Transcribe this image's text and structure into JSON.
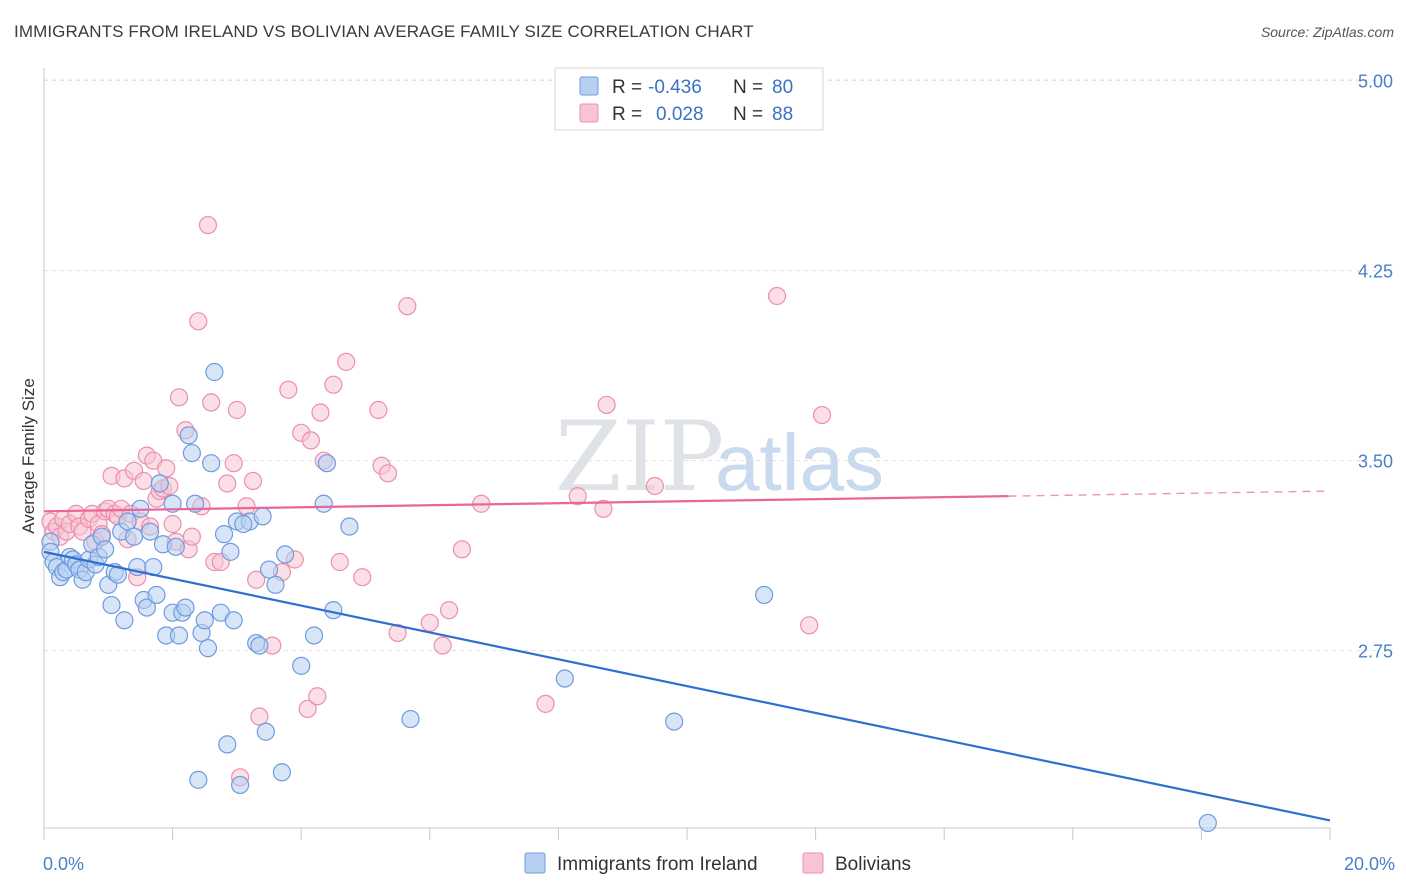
{
  "title": "IMMIGRANTS FROM IRELAND VS BOLIVIAN AVERAGE FAMILY SIZE CORRELATION CHART",
  "source": "Source: ZipAtlas.com",
  "watermark": {
    "zip": "ZIP",
    "atlas": "atlas"
  },
  "legend_box": [
    {
      "r_label": "R =",
      "r_value": "-0.436",
      "n_label": "N =",
      "n_value": "80"
    },
    {
      "r_label": "R =",
      "r_value": "0.028",
      "n_label": "N =",
      "n_value": "88"
    }
  ],
  "colors": {
    "ireland_fill": "#b7cff1",
    "ireland_stroke": "#6f9be0",
    "ireland_line": "#2e6fd0",
    "bolivia_fill": "#f8c4d3",
    "bolivia_stroke": "#ec8fab",
    "bolivia_line": "#e8669a"
  },
  "chart_data": {
    "type": "scatter",
    "xlabel": "",
    "ylabel": "Average Family Size",
    "xlim": [
      0,
      20
    ],
    "ylim": [
      2.05,
      5.05
    ],
    "x_tick_labels": [
      "0.0%",
      "20.0%"
    ],
    "y_ticks": [
      2.75,
      3.5,
      4.25,
      5.0
    ],
    "y_tick_labels": [
      "2.75",
      "3.50",
      "4.25",
      "5.00"
    ],
    "grid": "horizontal dashed",
    "legend_position": "top-center",
    "series": [
      {
        "name": "Immigrants from Ireland",
        "trend": {
          "x": [
            0,
            20
          ],
          "y": [
            3.14,
            2.08
          ]
        },
        "points": [
          [
            0.1,
            3.18
          ],
          [
            0.1,
            3.14
          ],
          [
            0.15,
            3.1
          ],
          [
            0.2,
            3.08
          ],
          [
            0.25,
            3.04
          ],
          [
            0.3,
            3.06
          ],
          [
            0.35,
            3.07
          ],
          [
            0.4,
            3.12
          ],
          [
            0.45,
            3.11
          ],
          [
            0.5,
            3.09
          ],
          [
            0.55,
            3.07
          ],
          [
            0.6,
            3.03
          ],
          [
            0.65,
            3.06
          ],
          [
            0.7,
            3.11
          ],
          [
            0.75,
            3.17
          ],
          [
            0.8,
            3.09
          ],
          [
            0.85,
            3.12
          ],
          [
            0.9,
            3.2
          ],
          [
            0.95,
            3.15
          ],
          [
            1.0,
            3.01
          ],
          [
            1.05,
            2.93
          ],
          [
            1.1,
            3.06
          ],
          [
            1.15,
            3.05
          ],
          [
            1.2,
            3.22
          ],
          [
            1.25,
            2.87
          ],
          [
            1.3,
            3.26
          ],
          [
            1.4,
            3.2
          ],
          [
            1.45,
            3.08
          ],
          [
            1.5,
            3.31
          ],
          [
            1.55,
            2.95
          ],
          [
            1.6,
            2.92
          ],
          [
            1.65,
            3.22
          ],
          [
            1.7,
            3.08
          ],
          [
            1.75,
            2.97
          ],
          [
            1.8,
            3.41
          ],
          [
            1.85,
            3.17
          ],
          [
            1.9,
            2.81
          ],
          [
            2.0,
            2.9
          ],
          [
            2.05,
            3.16
          ],
          [
            2.1,
            2.81
          ],
          [
            2.15,
            2.9
          ],
          [
            2.2,
            2.92
          ],
          [
            2.25,
            3.6
          ],
          [
            2.3,
            3.53
          ],
          [
            2.35,
            3.33
          ],
          [
            2.4,
            2.24
          ],
          [
            2.45,
            2.82
          ],
          [
            2.5,
            2.87
          ],
          [
            2.55,
            2.76
          ],
          [
            2.6,
            3.49
          ],
          [
            2.65,
            3.85
          ],
          [
            2.75,
            2.9
          ],
          [
            2.8,
            3.21
          ],
          [
            2.85,
            2.38
          ],
          [
            2.9,
            3.14
          ],
          [
            2.95,
            2.87
          ],
          [
            3.0,
            3.26
          ],
          [
            3.05,
            2.22
          ],
          [
            3.2,
            3.26
          ],
          [
            3.3,
            2.78
          ],
          [
            3.35,
            2.77
          ],
          [
            3.4,
            3.28
          ],
          [
            3.45,
            2.43
          ],
          [
            3.5,
            3.07
          ],
          [
            3.6,
            3.01
          ],
          [
            3.7,
            2.27
          ],
          [
            3.75,
            3.13
          ],
          [
            4.0,
            2.69
          ],
          [
            4.2,
            2.81
          ],
          [
            4.35,
            3.33
          ],
          [
            4.4,
            3.49
          ],
          [
            4.5,
            2.91
          ],
          [
            4.75,
            3.24
          ],
          [
            5.7,
            2.48
          ],
          [
            8.1,
            2.64
          ],
          [
            9.8,
            2.47
          ],
          [
            11.2,
            2.97
          ],
          [
            18.1,
            2.07
          ],
          [
            2.0,
            3.33
          ],
          [
            3.1,
            3.25
          ]
        ]
      },
      {
        "name": "Bolivians",
        "trend": {
          "x": [
            0,
            15
          ],
          "y": [
            3.3,
            3.36
          ]
        },
        "trend_dashed": {
          "x": [
            15,
            20
          ],
          "y": [
            3.36,
            3.38
          ]
        },
        "points": [
          [
            0.1,
            3.26
          ],
          [
            0.15,
            3.22
          ],
          [
            0.2,
            3.24
          ],
          [
            0.25,
            3.2
          ],
          [
            0.3,
            3.27
          ],
          [
            0.35,
            3.22
          ],
          [
            0.4,
            3.25
          ],
          [
            0.5,
            3.29
          ],
          [
            0.55,
            3.24
          ],
          [
            0.6,
            3.22
          ],
          [
            0.7,
            3.27
          ],
          [
            0.75,
            3.29
          ],
          [
            0.8,
            3.18
          ],
          [
            0.85,
            3.25
          ],
          [
            0.9,
            3.21
          ],
          [
            0.95,
            3.3
          ],
          [
            1.0,
            3.31
          ],
          [
            1.05,
            3.44
          ],
          [
            1.1,
            3.29
          ],
          [
            1.15,
            3.28
          ],
          [
            1.2,
            3.31
          ],
          [
            1.25,
            3.43
          ],
          [
            1.3,
            3.19
          ],
          [
            1.35,
            3.29
          ],
          [
            1.4,
            3.46
          ],
          [
            1.45,
            3.04
          ],
          [
            1.5,
            3.26
          ],
          [
            1.55,
            3.42
          ],
          [
            1.6,
            3.52
          ],
          [
            1.65,
            3.24
          ],
          [
            1.7,
            3.5
          ],
          [
            1.75,
            3.35
          ],
          [
            1.8,
            3.38
          ],
          [
            1.85,
            3.39
          ],
          [
            1.9,
            3.47
          ],
          [
            1.95,
            3.4
          ],
          [
            2.0,
            3.25
          ],
          [
            2.05,
            3.18
          ],
          [
            2.1,
            3.75
          ],
          [
            2.2,
            3.62
          ],
          [
            2.25,
            3.15
          ],
          [
            2.3,
            3.2
          ],
          [
            2.4,
            4.05
          ],
          [
            2.45,
            3.32
          ],
          [
            2.55,
            4.43
          ],
          [
            2.6,
            3.73
          ],
          [
            2.65,
            3.1
          ],
          [
            2.75,
            3.1
          ],
          [
            2.85,
            3.41
          ],
          [
            2.95,
            3.49
          ],
          [
            3.0,
            3.7
          ],
          [
            3.05,
            2.25
          ],
          [
            3.15,
            3.32
          ],
          [
            3.25,
            3.42
          ],
          [
            3.3,
            3.03
          ],
          [
            3.35,
            2.49
          ],
          [
            3.55,
            2.77
          ],
          [
            3.7,
            3.06
          ],
          [
            3.8,
            3.78
          ],
          [
            3.9,
            3.11
          ],
          [
            4.0,
            3.61
          ],
          [
            4.1,
            2.52
          ],
          [
            4.15,
            3.58
          ],
          [
            4.25,
            2.57
          ],
          [
            4.3,
            3.69
          ],
          [
            4.35,
            3.5
          ],
          [
            4.5,
            3.8
          ],
          [
            4.6,
            3.1
          ],
          [
            4.7,
            3.89
          ],
          [
            4.95,
            3.04
          ],
          [
            5.2,
            3.7
          ],
          [
            5.25,
            3.48
          ],
          [
            5.35,
            3.45
          ],
          [
            5.5,
            2.82
          ],
          [
            5.65,
            4.11
          ],
          [
            6.0,
            2.86
          ],
          [
            6.2,
            2.77
          ],
          [
            6.3,
            2.91
          ],
          [
            6.5,
            3.15
          ],
          [
            6.8,
            3.33
          ],
          [
            7.8,
            2.54
          ],
          [
            8.3,
            3.36
          ],
          [
            8.7,
            3.31
          ],
          [
            8.75,
            3.72
          ],
          [
            9.5,
            3.4
          ],
          [
            11.4,
            4.15
          ],
          [
            11.9,
            2.85
          ],
          [
            12.1,
            3.68
          ]
        ]
      }
    ]
  }
}
